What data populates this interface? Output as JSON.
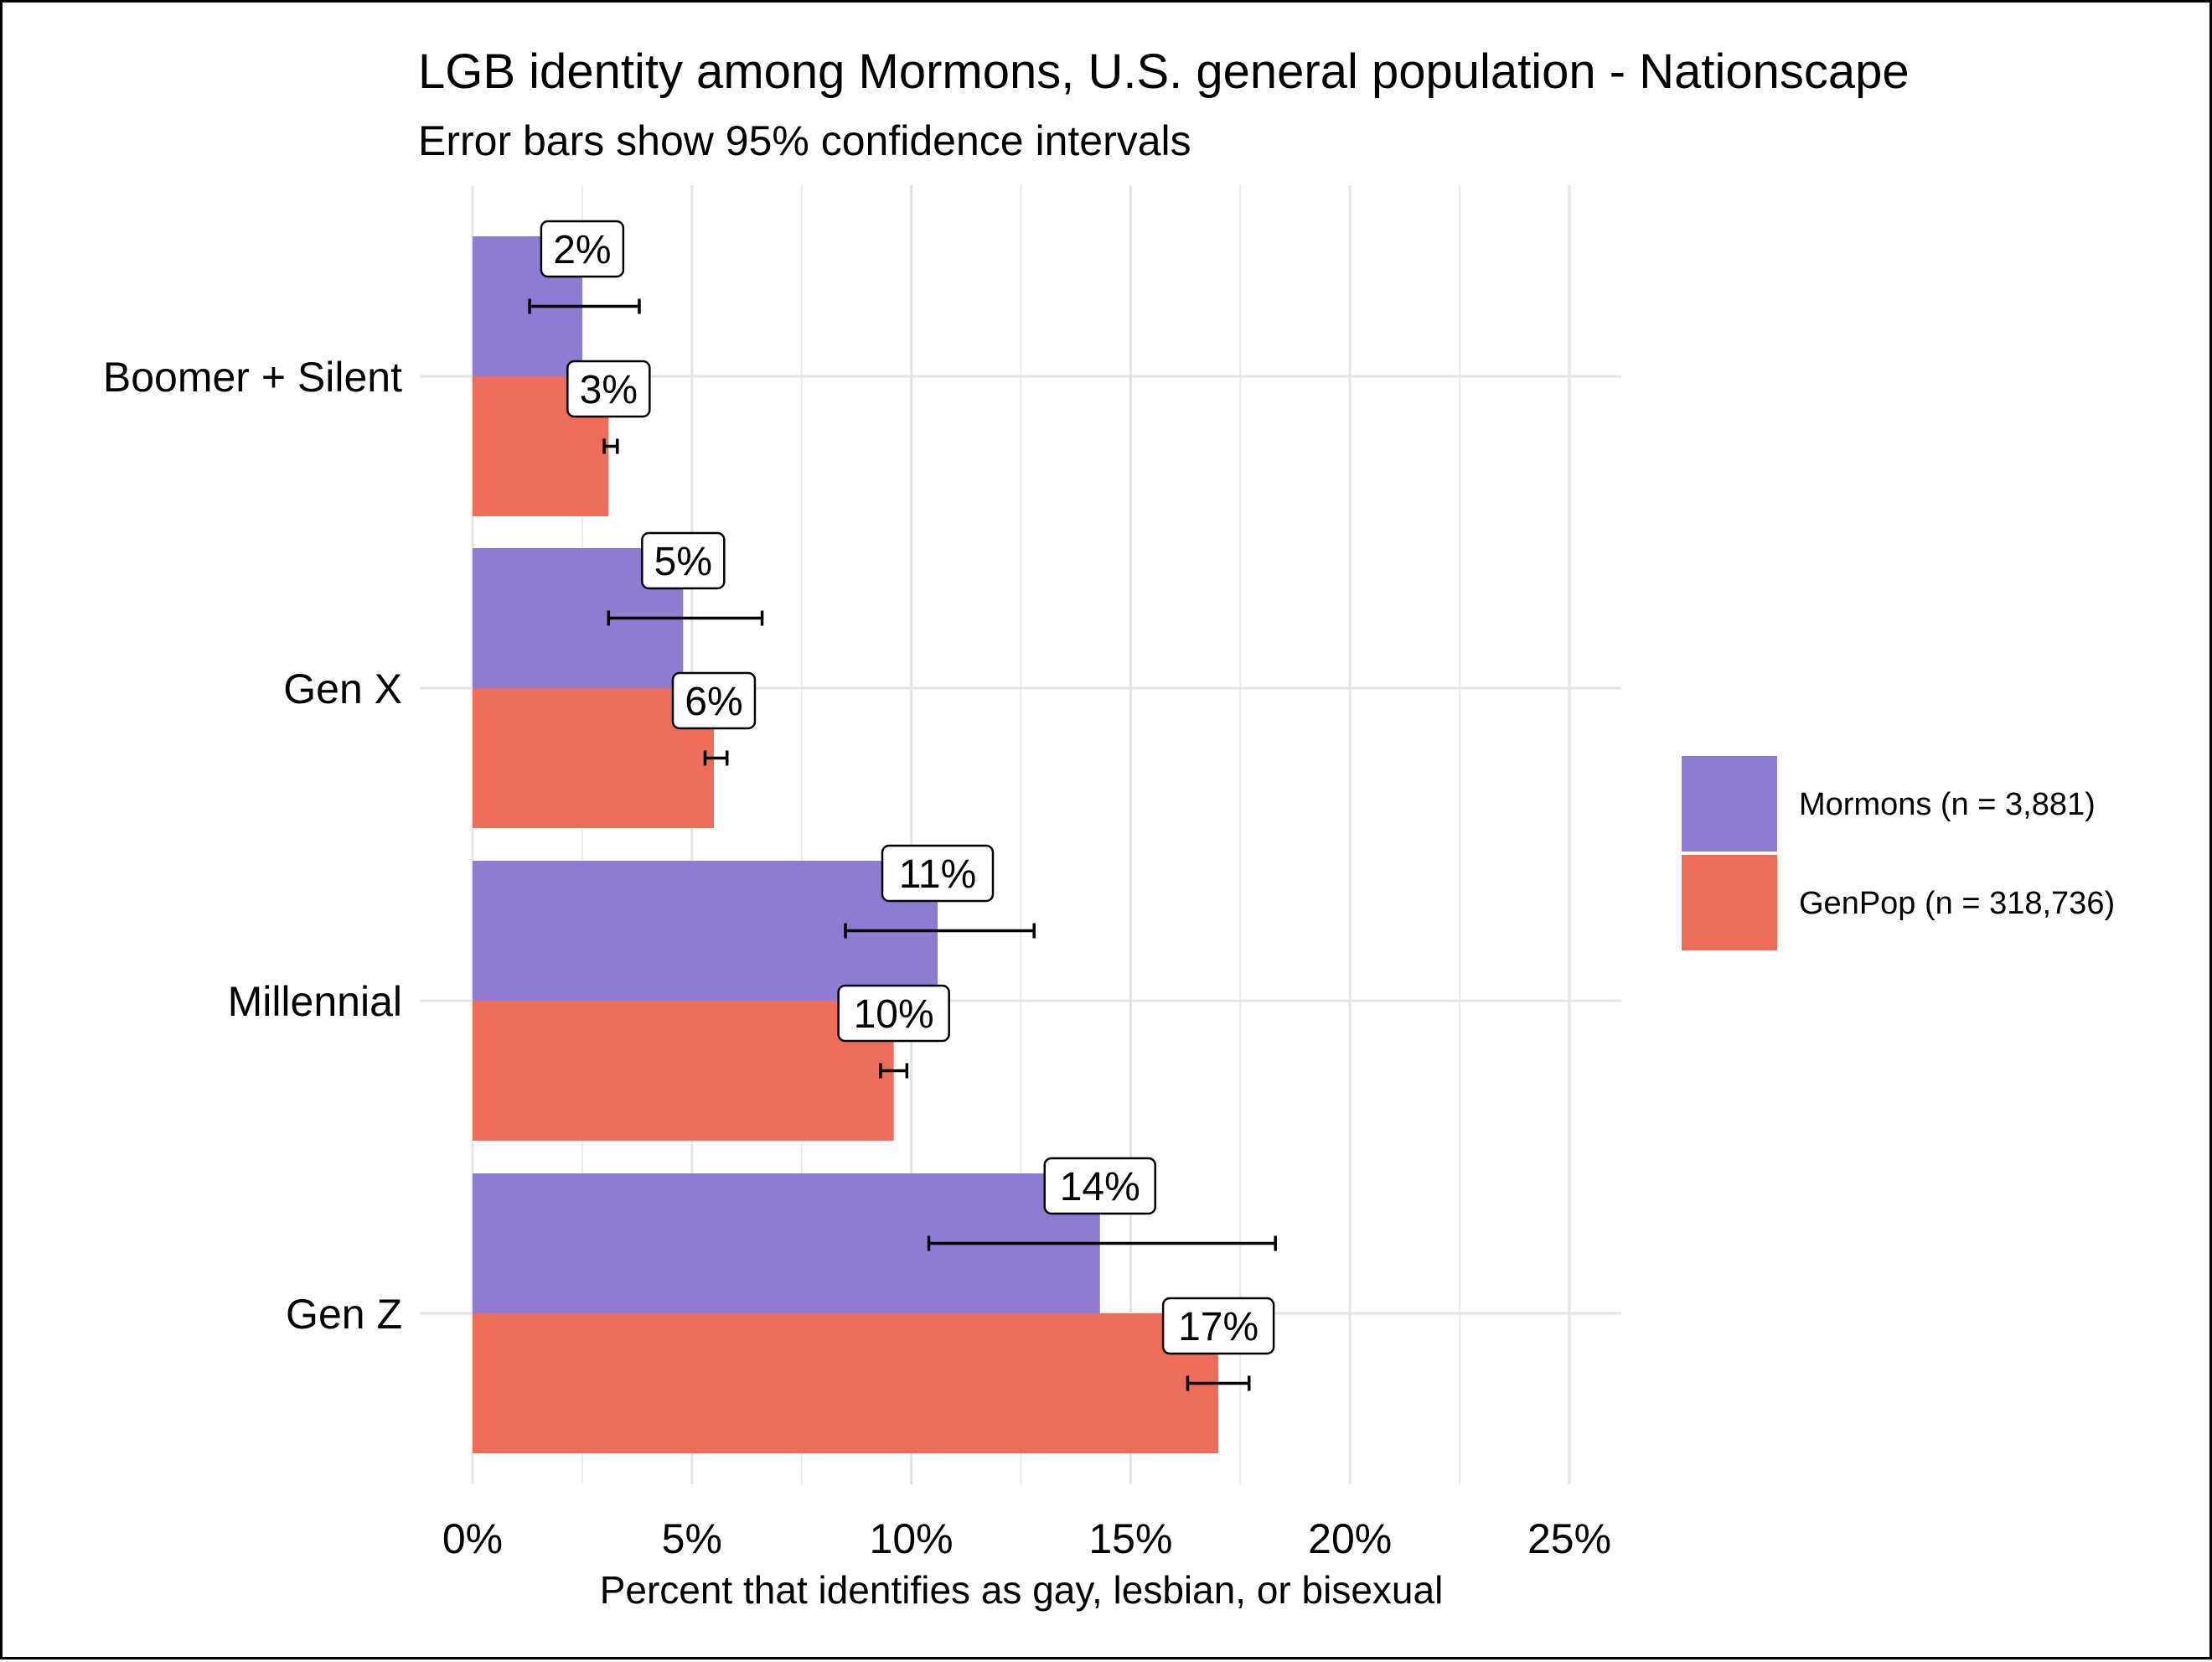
{
  "chart_data": {
    "type": "bar",
    "orientation": "horizontal",
    "title": "LGB identity among Mormons, U.S. general population - Nationscape",
    "subtitle": "Error bars show 95% confidence intervals",
    "xlabel": "Percent that identifies as gay, lesbian, or bisexual",
    "ylabel": "",
    "xlim": [
      0,
      0.25
    ],
    "x_ticks": [
      {
        "value": 0,
        "label": "0%"
      },
      {
        "value": 0.05,
        "label": "5%"
      },
      {
        "value": 0.1,
        "label": "10%"
      },
      {
        "value": 0.15,
        "label": "15%"
      },
      {
        "value": 0.2,
        "label": "20%"
      },
      {
        "value": 0.25,
        "label": "25%"
      }
    ],
    "grid": true,
    "legend_position": "right",
    "categories": [
      "Boomer + Silent",
      "Gen X",
      "Millennial",
      "Gen Z"
    ],
    "series": [
      {
        "name": "Mormons (n = 3,881)",
        "color": "#8E7CD3",
        "values": [
          0.025,
          0.048,
          0.106,
          0.143
        ],
        "ci_low": [
          0.013,
          0.031,
          0.085,
          0.104
        ],
        "ci_high": [
          0.038,
          0.066,
          0.128,
          0.183
        ],
        "labels": [
          "2%",
          "5%",
          "11%",
          "14%"
        ]
      },
      {
        "name": "GenPop (n = 318,736)",
        "color": "#EE6C5A",
        "values": [
          0.031,
          0.055,
          0.096,
          0.17
        ],
        "ci_low": [
          0.03,
          0.053,
          0.093,
          0.163
        ],
        "ci_high": [
          0.033,
          0.058,
          0.099,
          0.177
        ],
        "labels": [
          "3%",
          "6%",
          "10%",
          "17%"
        ]
      }
    ]
  }
}
